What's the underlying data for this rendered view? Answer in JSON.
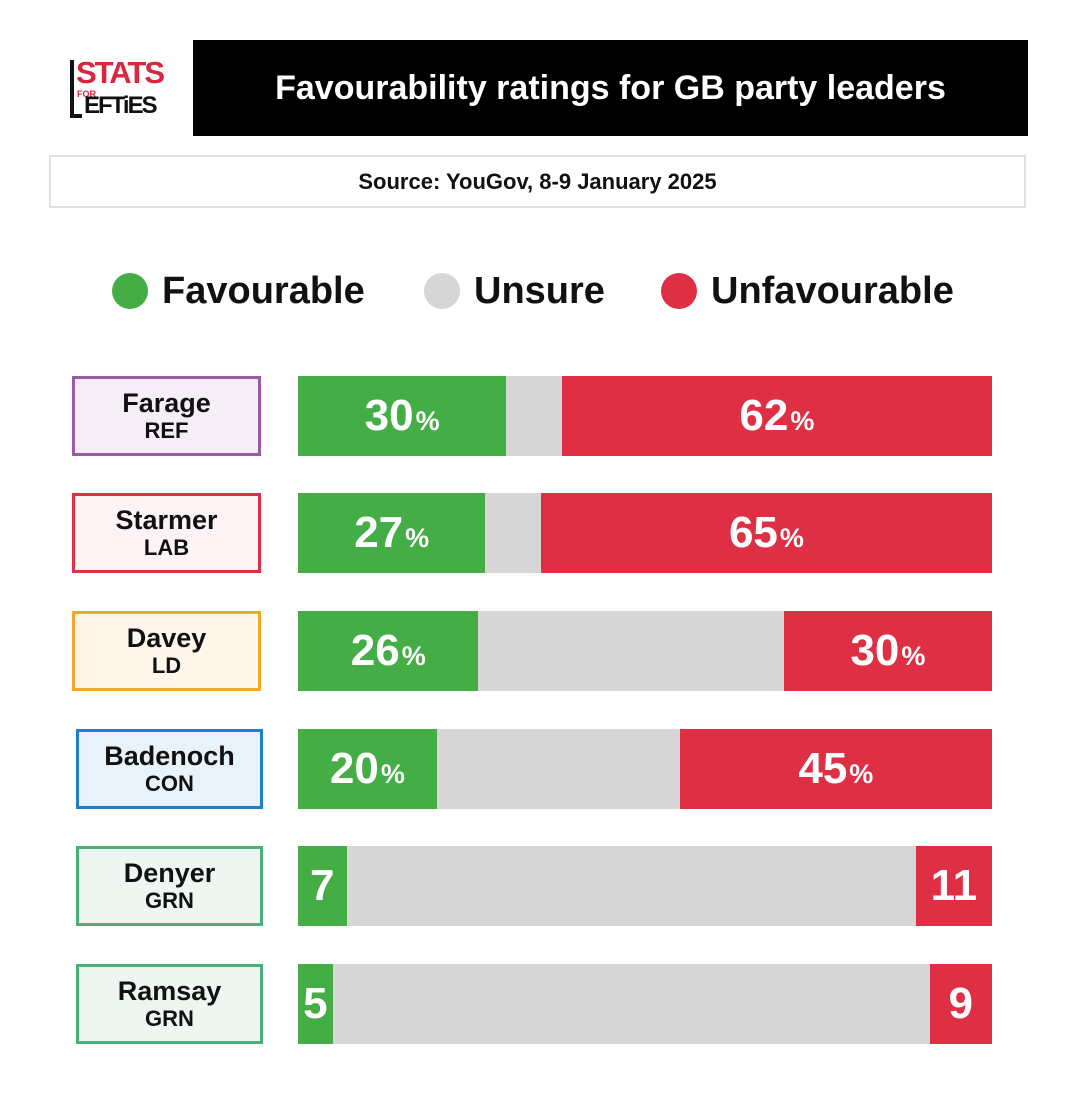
{
  "logo": {
    "stats": "STATS",
    "for": "FOR",
    "lefties": "EFTiES"
  },
  "title": "Favourability ratings for GB party leaders",
  "source": "Source: YouGov, 8-9 January 2025",
  "colors": {
    "favourable": "#44ad45",
    "unsure": "#d6d6d6",
    "unfavourable": "#de2f45"
  },
  "legend": [
    {
      "label": "Favourable",
      "color": "#44ad45"
    },
    {
      "label": "Unsure",
      "color": "#d6d6d6"
    },
    {
      "label": "Unfavourable",
      "color": "#de2f45"
    }
  ],
  "chart_data": {
    "type": "bar",
    "stacked": true,
    "orientation": "horizontal",
    "legend_position": "top",
    "grid": false,
    "categories": [
      "Farage",
      "Starmer",
      "Davey",
      "Badenoch",
      "Denyer",
      "Ramsay"
    ],
    "leaders": [
      {
        "name": "Farage",
        "party": "REF",
        "border": "#9b59a8",
        "fill": "#f5eef6",
        "favourable": 30,
        "unsure": 8,
        "unfavourable": 62,
        "fav_label": "30",
        "unfav_label": "62",
        "show_pct": true
      },
      {
        "name": "Starmer",
        "party": "LAB",
        "border": "#de2f45",
        "fill": "#fdf3f4",
        "favourable": 27,
        "unsure": 8,
        "unfavourable": 65,
        "fav_label": "27",
        "unfav_label": "65",
        "show_pct": true
      },
      {
        "name": "Davey",
        "party": "LD",
        "border": "#f2a72a",
        "fill": "#fef6ea",
        "favourable": 26,
        "unsure": 44,
        "unfavourable": 30,
        "fav_label": "26",
        "unfav_label": "30",
        "show_pct": true
      },
      {
        "name": "Badenoch",
        "party": "CON",
        "border": "#1f7fc6",
        "fill": "#e8f2fb",
        "favourable": 20,
        "unsure": 35,
        "unfavourable": 45,
        "fav_label": "20",
        "unfav_label": "45",
        "show_pct": true
      },
      {
        "name": "Denyer",
        "party": "GRN",
        "border": "#4caf79",
        "fill": "#edf6f0",
        "favourable": 7,
        "unsure": 82,
        "unfavourable": 11,
        "fav_label": "7",
        "unfav_label": "11",
        "show_pct": false
      },
      {
        "name": "Ramsay",
        "party": "GRN",
        "border": "#4caf79",
        "fill": "#edf6f0",
        "favourable": 5,
        "unsure": 86,
        "unfavourable": 9,
        "fav_label": "5",
        "unfav_label": "9",
        "show_pct": false
      }
    ],
    "pct_symbol": "%"
  }
}
